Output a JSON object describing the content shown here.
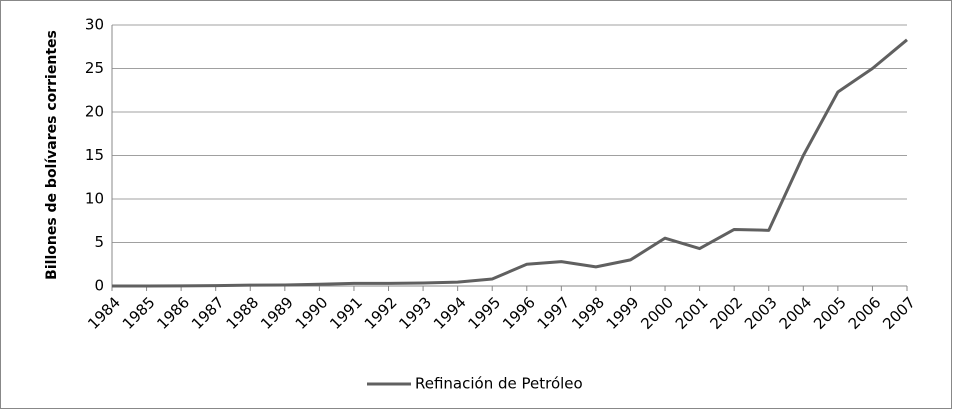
{
  "chart_data": {
    "type": "line",
    "y_label": "Billones de bolívares corrientes",
    "categories": [
      "1984",
      "1985",
      "1986",
      "1987",
      "1988",
      "1989",
      "1990",
      "1991",
      "1992",
      "1993",
      "1994",
      "1995",
      "1996",
      "1997",
      "1998",
      "1999",
      "2000",
      "2001",
      "2002",
      "2003",
      "2004",
      "2005",
      "2006",
      "2007"
    ],
    "series": [
      {
        "name": "Refinación de Petróleo",
        "color": "#606060",
        "values": [
          0,
          0,
          0.02,
          0.05,
          0.1,
          0.12,
          0.2,
          0.3,
          0.3,
          0.35,
          0.45,
          0.8,
          2.5,
          2.8,
          2.2,
          3.0,
          5.5,
          4.3,
          6.5,
          6.4,
          15,
          22.3,
          25,
          28.3
        ]
      }
    ],
    "ylim": [
      0,
      30
    ],
    "yticks": [
      0,
      5,
      10,
      15,
      20,
      25,
      30
    ],
    "grid": true,
    "legend": "bottom"
  }
}
